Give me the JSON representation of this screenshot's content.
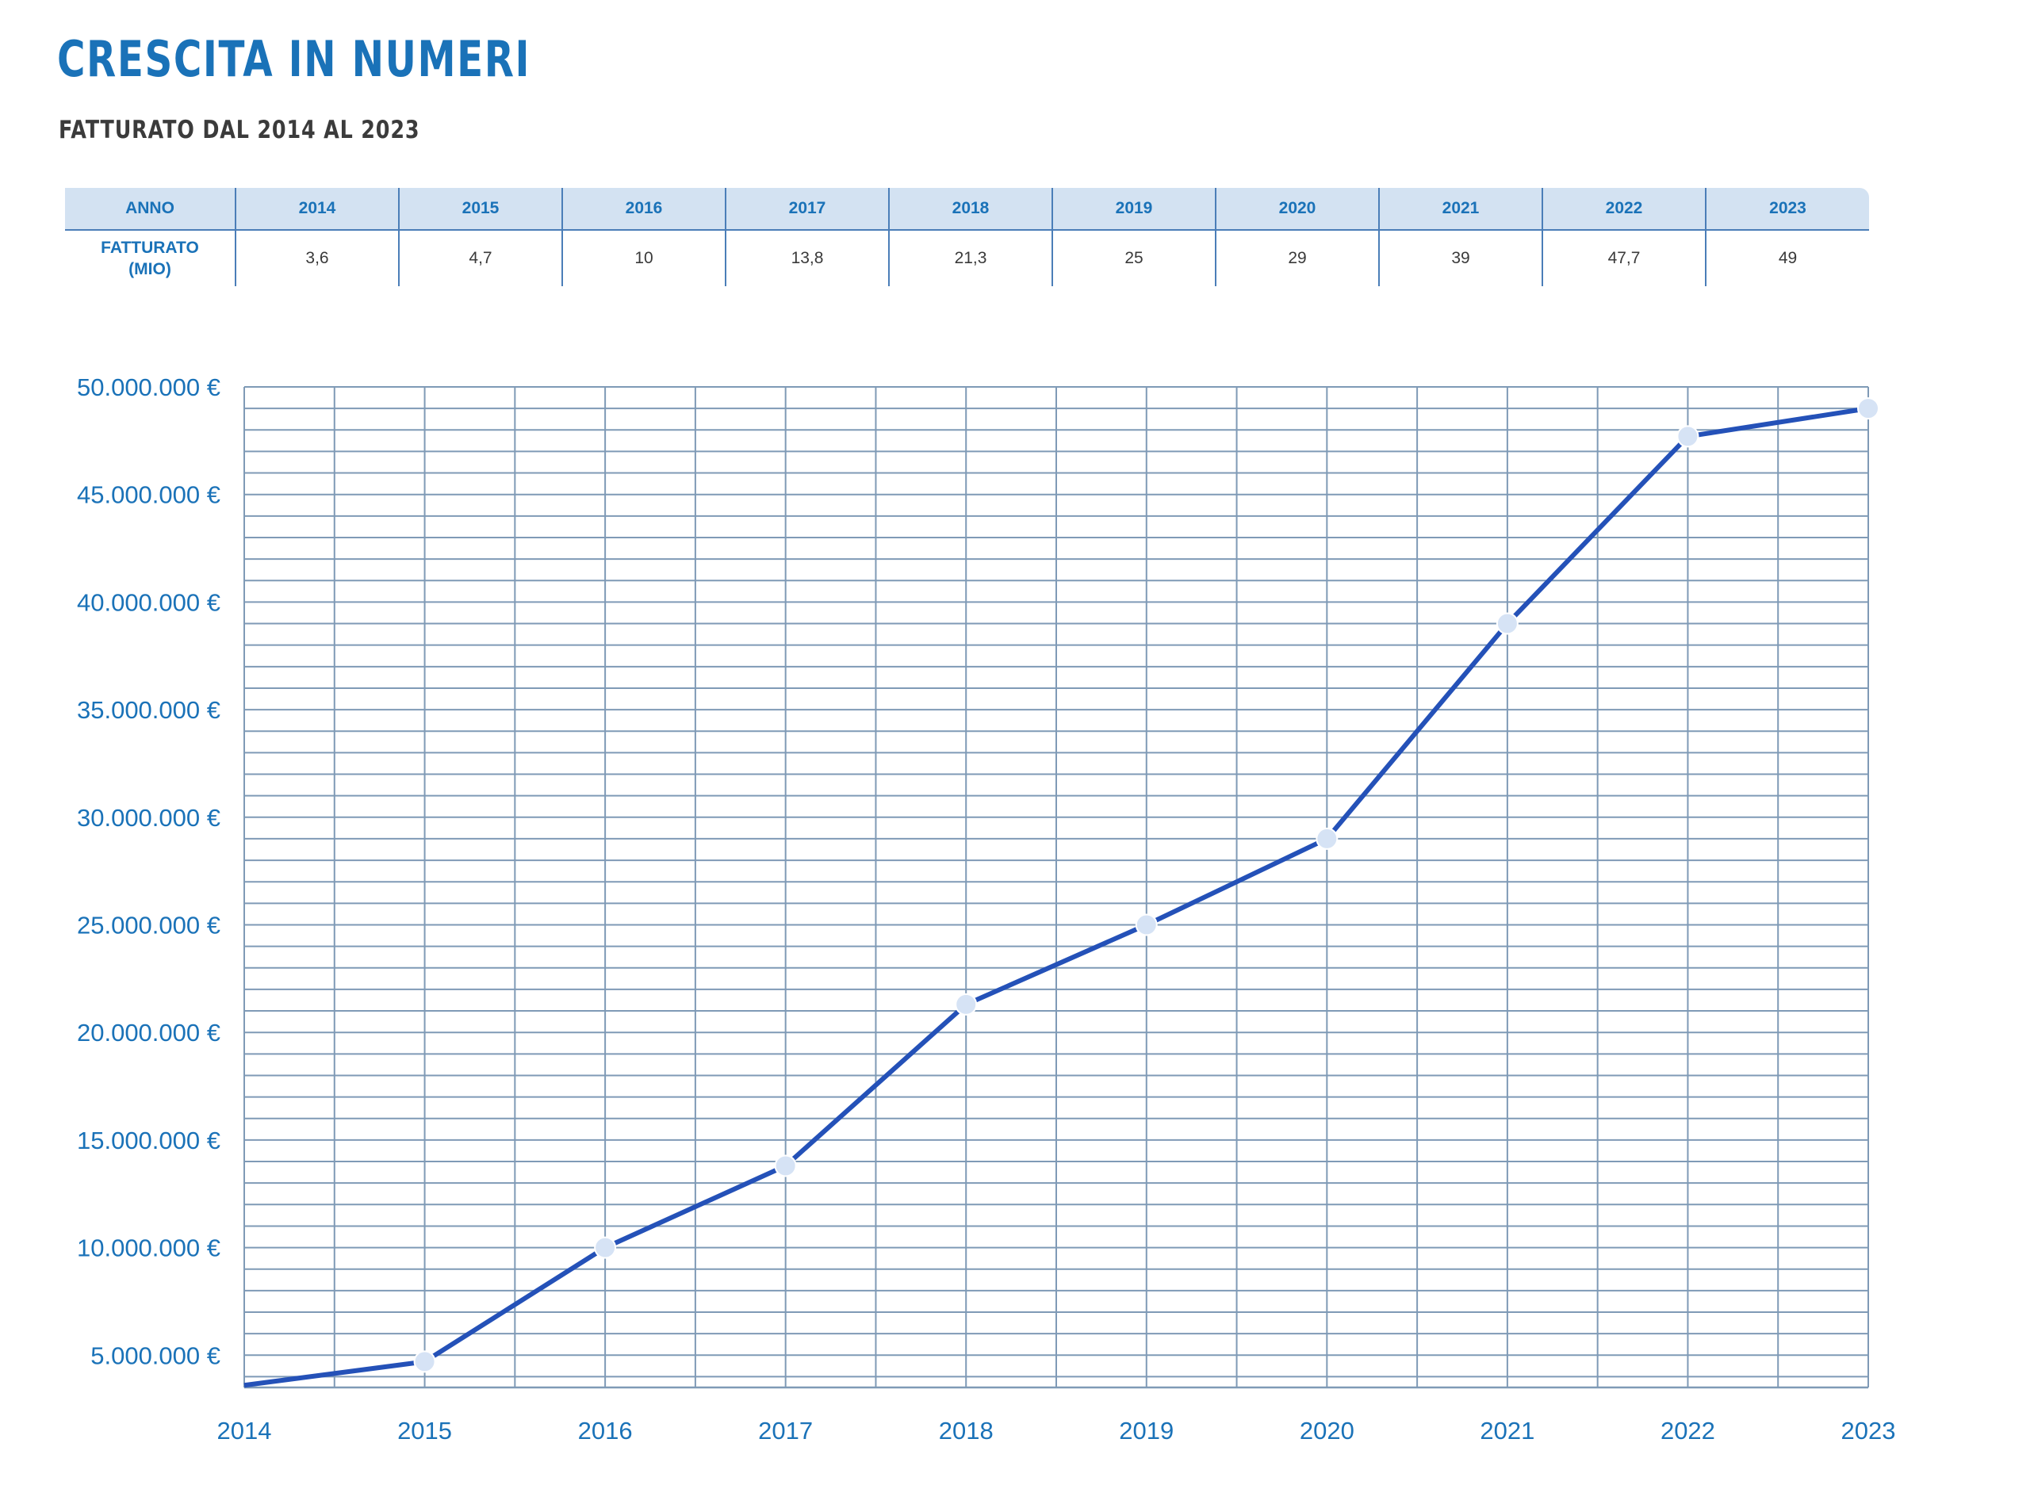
{
  "title": "CRESCITA  IN  NUMERI",
  "subtitle": "FATTURATO DAL  2014  AL 2023",
  "table": {
    "header_label": "ANNO",
    "row_label_line1": "FATTURATO",
    "row_label_line2": "(MIO)",
    "years": [
      "2014",
      "2015",
      "2016",
      "2017",
      "2018",
      "2019",
      "2020",
      "2021",
      "2022",
      "2023"
    ],
    "values": [
      "3,6",
      "4,7",
      "10",
      "13,8",
      "21,3",
      "25",
      "29",
      "39",
      "47,7",
      "49"
    ]
  },
  "chart_data": {
    "type": "line",
    "title": "",
    "xlabel": "",
    "ylabel": "",
    "x": [
      "2014",
      "2015",
      "2016",
      "2017",
      "2018",
      "2019",
      "2020",
      "2021",
      "2022",
      "2023"
    ],
    "series": [
      {
        "values": [
          3600000,
          4700000,
          10000000,
          13800000,
          21300000,
          25000000,
          29000000,
          39000000,
          47700000,
          49000000
        ]
      }
    ],
    "ylim": [
      3500000,
      50000000
    ],
    "yticks": [
      5000000,
      10000000,
      15000000,
      20000000,
      25000000,
      30000000,
      35000000,
      40000000,
      45000000,
      50000000
    ],
    "ytick_labels": [
      "5.000.000 €",
      "10.000.000 €",
      "15.000.000 €",
      "20.000.000 €",
      "25.000.000 €",
      "30.000.000 €",
      "35.000.000 €",
      "40.000.000 €",
      "45.000.000 €",
      "50.000.000 €"
    ],
    "grid": true,
    "colors": {
      "line": "#2451b8",
      "marker": "#d6e3f5",
      "grid": "#7f9ab6",
      "labels": "#1a72b8"
    }
  }
}
